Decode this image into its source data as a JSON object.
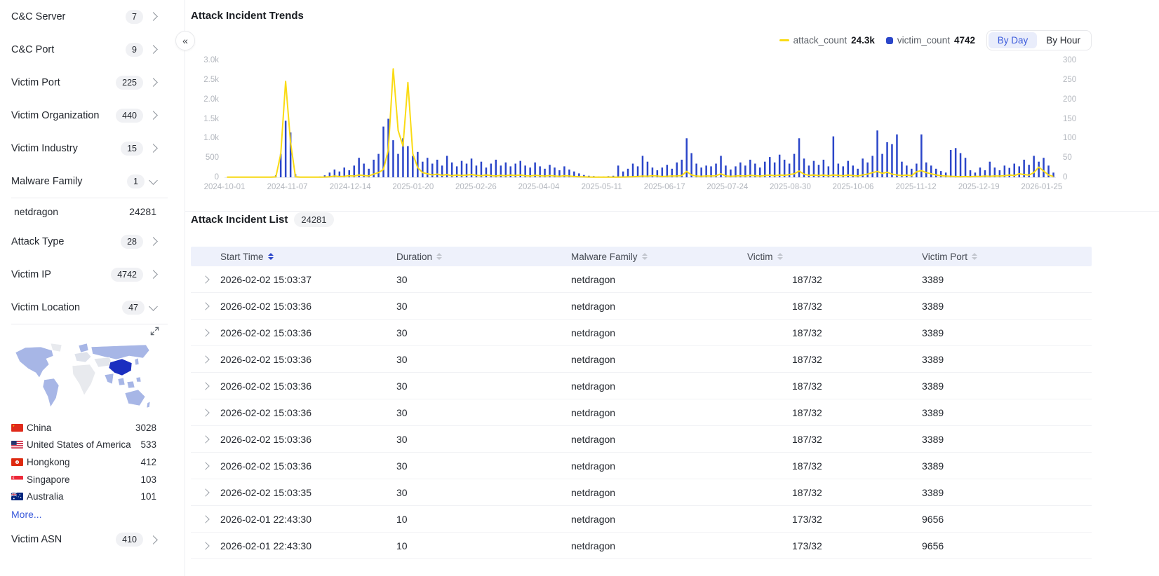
{
  "colors": {
    "attack_line": "#FADB14",
    "victim_bar": "#2B46C9",
    "accent_blue": "#3B5BDB",
    "map_country_low": "#A7B6E6",
    "map_country_high": "#1B2FC0",
    "map_country_none": "#E8EAEE",
    "table_header_bg": "#EEF1FB"
  },
  "icons": {
    "collapse_sidebar": "«"
  },
  "sidebar": {
    "sections": [
      {
        "label": "C&C Server",
        "count": "7"
      },
      {
        "label": "C&C Port",
        "count": "9"
      },
      {
        "label": "Victim Port",
        "count": "225"
      },
      {
        "label": "Victim Organization",
        "count": "440"
      },
      {
        "label": "Victim Industry",
        "count": "15"
      },
      {
        "label": "Malware Family",
        "count": "1",
        "expanded": true,
        "children": [
          {
            "name": "netdragon",
            "count": "24281"
          }
        ]
      },
      {
        "label": "Attack Type",
        "count": "28"
      },
      {
        "label": "Victim IP",
        "count": "4742"
      },
      {
        "label": "Victim Location",
        "count": "47",
        "expanded": true,
        "countries": [
          {
            "flag": "cn",
            "name": "China",
            "count": "3028"
          },
          {
            "flag": "us",
            "name": "United States of America",
            "count": "533"
          },
          {
            "flag": "hk",
            "name": "Hongkong",
            "count": "412"
          },
          {
            "flag": "sg",
            "name": "Singapore",
            "count": "103"
          },
          {
            "flag": "au",
            "name": "Australia",
            "count": "101"
          }
        ],
        "more_label": "More..."
      },
      {
        "label": "Victim ASN",
        "count": "410"
      }
    ]
  },
  "trends": {
    "title": "Attack Incident Trends",
    "range_toggle": {
      "options": [
        "By Day",
        "By Hour"
      ],
      "selected": "By Day"
    }
  },
  "chart_data": {
    "type": "bar",
    "title": "Attack Incident Trends",
    "grid": false,
    "legend_position": "top-right",
    "x_tick_labels": [
      "2024-10-01",
      "2024-11-07",
      "2024-12-14",
      "2025-01-20",
      "2025-02-26",
      "2025-04-04",
      "2025-05-11",
      "2025-06-17",
      "2025-07-24",
      "2025-08-30",
      "2025-10-06",
      "2025-11-12",
      "2025-12-19",
      "2026-01-25"
    ],
    "y_left": {
      "labels": [
        "3.0k",
        "2.5k",
        "2.0k",
        "1.5k",
        "1.0k",
        "500",
        "0"
      ],
      "max": 3000
    },
    "y_right": {
      "labels": [
        "300",
        "250",
        "200",
        "150",
        "100",
        "50",
        "0"
      ],
      "max": 300
    },
    "series": [
      {
        "name": "attack_count",
        "type": "line",
        "axis": "left",
        "color": "#FADB14",
        "total": "24.3k",
        "values": [
          3,
          3,
          3,
          3,
          3,
          3,
          3,
          3,
          3,
          3,
          10,
          600,
          2460,
          900,
          12,
          4,
          4,
          4,
          4,
          6,
          8,
          15,
          30,
          20,
          25,
          40,
          30,
          60,
          45,
          35,
          80,
          120,
          200,
          700,
          2780,
          1200,
          800,
          2430,
          600,
          250,
          120,
          90,
          60,
          80,
          50,
          70,
          40,
          60,
          45,
          55,
          70,
          50,
          40,
          60,
          45,
          35,
          50,
          40,
          55,
          45,
          60,
          40,
          35,
          50,
          40,
          30,
          45,
          35,
          25,
          40,
          30,
          20,
          15,
          10,
          8,
          6,
          5,
          5,
          5,
          5,
          6,
          8,
          10,
          15,
          20,
          30,
          25,
          40,
          30,
          20,
          25,
          35,
          30,
          45,
          150,
          60,
          30,
          25,
          35,
          30,
          40,
          90,
          35,
          25,
          30,
          40,
          35,
          50,
          40,
          30,
          45,
          55,
          40,
          60,
          50,
          70,
          90,
          160,
          80,
          50,
          60,
          45,
          55,
          40,
          60,
          50,
          40,
          55,
          45,
          35,
          60,
          80,
          120,
          150,
          100,
          130,
          80,
          60,
          45,
          55,
          40,
          140,
          170,
          120,
          90,
          60,
          40,
          30,
          25,
          20,
          15,
          20,
          15,
          25,
          20,
          30,
          25,
          35,
          30,
          40,
          60,
          45,
          90,
          70,
          55,
          120,
          260,
          160,
          60,
          20
        ]
      },
      {
        "name": "victim_count",
        "type": "bar",
        "axis": "right",
        "color": "#2B46C9",
        "total": "4742",
        "values": [
          0,
          0,
          0,
          0,
          0,
          0,
          0,
          0,
          0,
          0,
          5,
          60,
          145,
          115,
          8,
          0,
          0,
          0,
          0,
          2,
          5,
          12,
          20,
          15,
          25,
          18,
          30,
          50,
          35,
          22,
          45,
          60,
          130,
          150,
          95,
          60,
          100,
          80,
          55,
          65,
          40,
          50,
          35,
          45,
          30,
          55,
          38,
          28,
          42,
          35,
          48,
          30,
          40,
          25,
          35,
          45,
          30,
          38,
          28,
          35,
          42,
          30,
          25,
          38,
          28,
          22,
          32,
          25,
          18,
          28,
          20,
          15,
          10,
          6,
          4,
          3,
          2,
          2,
          3,
          4,
          30,
          15,
          22,
          35,
          28,
          55,
          40,
          25,
          18,
          25,
          32,
          22,
          38,
          45,
          100,
          62,
          35,
          25,
          30,
          28,
          35,
          55,
          30,
          20,
          28,
          38,
          30,
          45,
          35,
          25,
          40,
          52,
          38,
          58,
          45,
          35,
          60,
          100,
          48,
          30,
          42,
          32,
          45,
          28,
          105,
          35,
          28,
          42,
          30,
          22,
          48,
          38,
          55,
          120,
          60,
          90,
          85,
          110,
          40,
          30,
          22,
          35,
          110,
          38,
          30,
          22,
          16,
          12,
          70,
          75,
          62,
          50,
          18,
          12,
          25,
          18,
          40,
          25,
          18,
          30,
          24,
          35,
          28,
          45,
          32,
          55,
          40,
          50,
          30,
          12
        ]
      }
    ]
  },
  "incident_list": {
    "title": "Attack Incident List",
    "total": "24281",
    "columns": [
      {
        "label": "Start Time",
        "sorted": true
      },
      {
        "label": "Duration",
        "sorted": false
      },
      {
        "label": "Malware Family",
        "sorted": false
      },
      {
        "label": "Victim",
        "sorted": false
      },
      {
        "label": "Victim Port",
        "sorted": false
      }
    ],
    "rows": [
      {
        "start_time": "2026-02-02 15:03:37",
        "duration": "30",
        "malware_family": "netdragon",
        "victim": "187/32",
        "victim_port": "3389"
      },
      {
        "start_time": "2026-02-02 15:03:36",
        "duration": "30",
        "malware_family": "netdragon",
        "victim": "187/32",
        "victim_port": "3389"
      },
      {
        "start_time": "2026-02-02 15:03:36",
        "duration": "30",
        "malware_family": "netdragon",
        "victim": "187/32",
        "victim_port": "3389"
      },
      {
        "start_time": "2026-02-02 15:03:36",
        "duration": "30",
        "malware_family": "netdragon",
        "victim": "187/32",
        "victim_port": "3389"
      },
      {
        "start_time": "2026-02-02 15:03:36",
        "duration": "30",
        "malware_family": "netdragon",
        "victim": "187/32",
        "victim_port": "3389"
      },
      {
        "start_time": "2026-02-02 15:03:36",
        "duration": "30",
        "malware_family": "netdragon",
        "victim": "187/32",
        "victim_port": "3389"
      },
      {
        "start_time": "2026-02-02 15:03:36",
        "duration": "30",
        "malware_family": "netdragon",
        "victim": "187/32",
        "victim_port": "3389"
      },
      {
        "start_time": "2026-02-02 15:03:36",
        "duration": "30",
        "malware_family": "netdragon",
        "victim": "187/32",
        "victim_port": "3389"
      },
      {
        "start_time": "2026-02-02 15:03:35",
        "duration": "30",
        "malware_family": "netdragon",
        "victim": "187/32",
        "victim_port": "3389"
      },
      {
        "start_time": "2026-02-01 22:43:30",
        "duration": "10",
        "malware_family": "netdragon",
        "victim": "173/32",
        "victim_port": "9656"
      },
      {
        "start_time": "2026-02-01 22:43:30",
        "duration": "10",
        "malware_family": "netdragon",
        "victim": "173/32",
        "victim_port": "9656"
      }
    ]
  }
}
